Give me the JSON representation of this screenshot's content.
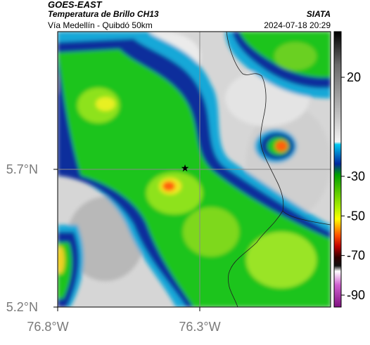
{
  "header": {
    "satellite": "GOES-EAST",
    "product": "Temperatura de Brillo CH13",
    "route": "Vía Medellín - Quibdó 50km",
    "agency": "SIATA",
    "datetime": "2024-07-18 20:29"
  },
  "map": {
    "lat_ticks": [
      {
        "label": "5.7°N",
        "value": 5.7
      },
      {
        "label": "5.2°N",
        "value": 5.2
      }
    ],
    "lon_ticks": [
      {
        "label": "76.8°W",
        "value": -76.8
      },
      {
        "label": "76.3°W",
        "value": -76.3
      }
    ],
    "marker": {
      "type": "star-icon",
      "lat": 5.7,
      "lon": -76.38
    }
  },
  "colorbar": {
    "ticks": [
      {
        "label": "20",
        "value": 20
      },
      {
        "label": "-30",
        "value": -30
      },
      {
        "label": "-50",
        "value": -50
      },
      {
        "label": "-70",
        "value": -70
      },
      {
        "label": "-90",
        "value": -90
      }
    ],
    "stops": [
      "#000000",
      "#7a7a7a",
      "#e6e6e6",
      "#00b0e0",
      "#0030a0",
      "#00c000",
      "#ffff00",
      "#ff6000",
      "#c00000",
      "#400000",
      "#ffffff",
      "#a000a0"
    ]
  },
  "colors": {
    "cloud_gray": "#dcdcdc",
    "deep_blue": "#0a2e9c",
    "cyan": "#12a8d8",
    "green": "#18c418",
    "lime": "#90e020",
    "yellow": "#f0f020",
    "orange": "#ff6010"
  }
}
